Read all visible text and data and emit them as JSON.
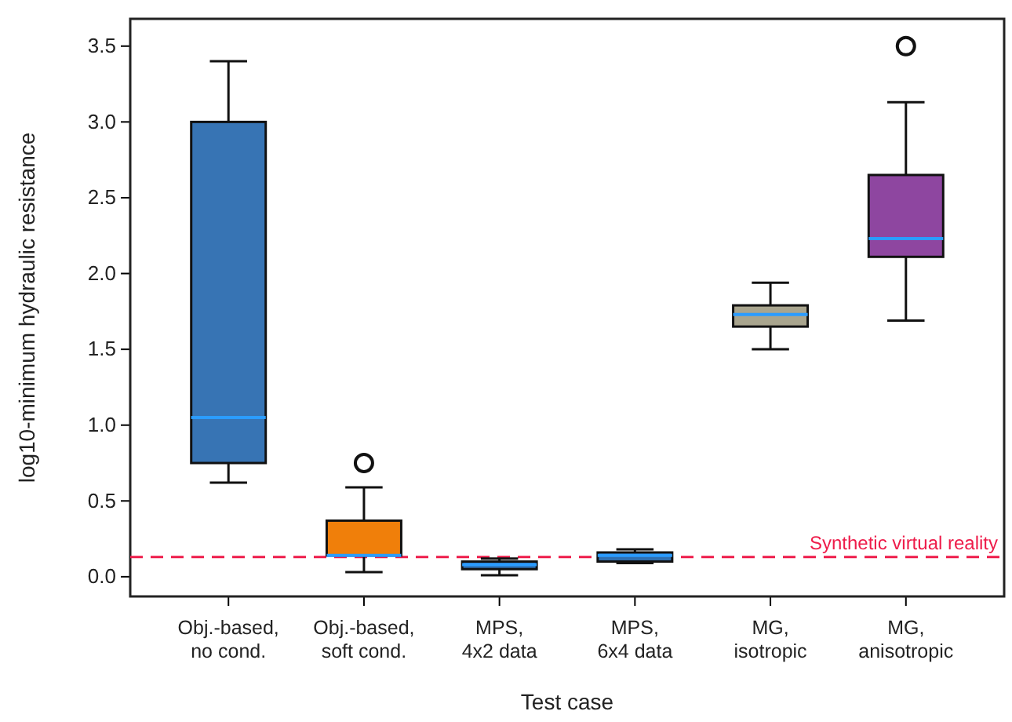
{
  "chart_data": {
    "type": "box",
    "xlabel": "Test case",
    "ylabel": "log10-minimum hydraulic resistance",
    "categories": [
      "Obj.-based,\nno cond.",
      "Obj.-based,\nsoft cond.",
      "MPS,\n4x2 data",
      "MPS,\n6x4 data",
      "MG,\nisotropic",
      "MG,\nanisotropic"
    ],
    "colors": [
      "#3774b4",
      "#f07f0a",
      "#2f6fb0",
      "#2f6fb0",
      "#a9a58e",
      "#8e46a0"
    ],
    "boxes": [
      {
        "low": 0.62,
        "q1": 0.75,
        "median": 1.05,
        "q3": 3.0,
        "high": 3.4
      },
      {
        "low": 0.03,
        "q1": 0.14,
        "median": 0.14,
        "q3": 0.37,
        "high": 0.59,
        "outliers": [
          0.75
        ]
      },
      {
        "low": 0.01,
        "q1": 0.05,
        "median": 0.08,
        "q3": 0.1,
        "high": 0.12
      },
      {
        "low": 0.09,
        "q1": 0.1,
        "median": 0.14,
        "q3": 0.16,
        "high": 0.18
      },
      {
        "low": 1.5,
        "q1": 1.65,
        "median": 1.73,
        "q3": 1.79,
        "high": 1.94
      },
      {
        "low": 1.69,
        "q1": 2.11,
        "median": 2.23,
        "q3": 2.65,
        "high": 3.13,
        "outliers": [
          3.5
        ]
      }
    ],
    "ylim": [
      -0.13,
      3.68
    ],
    "yticks": [
      {
        "value": 0,
        "label": "0.0"
      },
      0.5,
      {
        "value": 1,
        "label": "1.0"
      },
      1.5,
      {
        "value": 2,
        "label": "2.0"
      },
      2.5,
      {
        "value": 3,
        "label": "3.0"
      },
      3.5
    ],
    "ref_lines": [
      {
        "axis": "y",
        "value": 0.13,
        "label": "Synthetic virtual reality",
        "color": "#ee1c4a",
        "line_style": "dashed"
      }
    ]
  }
}
